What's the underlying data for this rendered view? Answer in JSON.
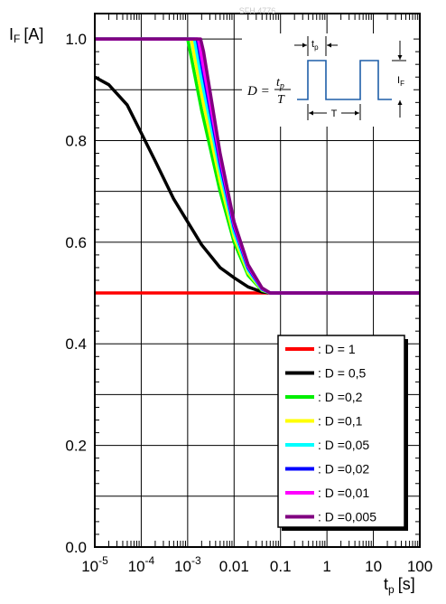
{
  "chart_data": {
    "type": "line",
    "watermark": "SFH 4776",
    "ylabel_main": "I",
    "ylabel_sub": "F",
    "ylabel_unit": "[A]",
    "xlabel_main": "t",
    "xlabel_sub": "p",
    "xlabel_unit": "[s]",
    "x_scale": "log",
    "xlim": [
      1e-05,
      100
    ],
    "ylim": [
      0.0,
      1.05
    ],
    "x_ticks": [
      {
        "value": 1e-05,
        "label_base": "10",
        "label_exp": "-5"
      },
      {
        "value": 0.0001,
        "label_base": "10",
        "label_exp": "-4"
      },
      {
        "value": 0.001,
        "label_base": "10",
        "label_exp": "-3"
      },
      {
        "value": 0.01,
        "label": "0.01"
      },
      {
        "value": 0.1,
        "label": "0.1"
      },
      {
        "value": 1,
        "label": "1"
      },
      {
        "value": 10,
        "label": "10"
      },
      {
        "value": 100,
        "label": "100"
      }
    ],
    "y_ticks": [
      {
        "value": 0.0,
        "label": "0.0"
      },
      {
        "value": 0.2,
        "label": "0.2"
      },
      {
        "value": 0.4,
        "label": "0.4"
      },
      {
        "value": 0.6,
        "label": "0.6"
      },
      {
        "value": 0.8,
        "label": "0.8"
      },
      {
        "value": 1.0,
        "label": "1.0"
      }
    ],
    "y_minor_step": 0.1,
    "grid": true,
    "legend_position": "bottom-right",
    "inset": {
      "formula_lhs": "D =",
      "formula_num_main": "t",
      "formula_num_sub": "p",
      "formula_den": "T",
      "tp_main": "t",
      "tp_sub": "p",
      "period": "T",
      "amp_main": "I",
      "amp_sub": "F"
    },
    "series": [
      {
        "name": ": D = 1",
        "color": "#ff0000",
        "x": [
          1e-05,
          100
        ],
        "y": [
          0.5,
          0.5
        ]
      },
      {
        "name": ": D = 0,5",
        "color": "#000000",
        "x": [
          1e-05,
          2e-05,
          5e-05,
          0.0001,
          0.0002,
          0.0005,
          0.001,
          0.002,
          0.005,
          0.01,
          0.02,
          0.04,
          0.06,
          100
        ],
        "y": [
          0.925,
          0.91,
          0.87,
          0.815,
          0.76,
          0.685,
          0.64,
          0.595,
          0.55,
          0.53,
          0.512,
          0.502,
          0.5,
          0.5
        ]
      },
      {
        "name": ": D =0,2",
        "color": "#00ee00",
        "x": [
          1e-05,
          0.001,
          0.002,
          0.005,
          0.01,
          0.02,
          0.04,
          0.06,
          100
        ],
        "y": [
          1.0,
          1.0,
          0.86,
          0.7,
          0.6,
          0.535,
          0.505,
          0.5,
          0.5
        ]
      },
      {
        "name": ": D =0,1",
        "color": "#ffff00",
        "x": [
          1e-05,
          0.0012,
          0.002,
          0.005,
          0.01,
          0.02,
          0.04,
          0.06,
          100
        ],
        "y": [
          1.0,
          1.0,
          0.89,
          0.72,
          0.61,
          0.54,
          0.506,
          0.5,
          0.5
        ]
      },
      {
        "name": ": D =0,05",
        "color": "#00ffff",
        "x": [
          1e-05,
          0.0014,
          0.002,
          0.005,
          0.01,
          0.02,
          0.04,
          0.06,
          100
        ],
        "y": [
          1.0,
          1.0,
          0.92,
          0.74,
          0.62,
          0.545,
          0.507,
          0.5,
          0.5
        ]
      },
      {
        "name": ": D =0,02",
        "color": "#0000ff",
        "x": [
          1e-05,
          0.0016,
          0.002,
          0.005,
          0.01,
          0.02,
          0.04,
          0.06,
          100
        ],
        "y": [
          1.0,
          1.0,
          0.95,
          0.755,
          0.63,
          0.55,
          0.508,
          0.5,
          0.5
        ]
      },
      {
        "name": ": D =0,01",
        "color": "#ff00ff",
        "x": [
          1e-05,
          0.0017,
          0.002,
          0.005,
          0.01,
          0.02,
          0.04,
          0.06,
          100
        ],
        "y": [
          1.0,
          1.0,
          0.965,
          0.765,
          0.635,
          0.553,
          0.509,
          0.5,
          0.5
        ]
      },
      {
        "name": ": D =0,005",
        "color": "#800080",
        "x": [
          1e-05,
          0.0019,
          0.0022,
          0.005,
          0.01,
          0.02,
          0.04,
          0.06,
          100
        ],
        "y": [
          1.0,
          1.0,
          0.975,
          0.775,
          0.64,
          0.556,
          0.51,
          0.5,
          0.5
        ]
      }
    ]
  }
}
